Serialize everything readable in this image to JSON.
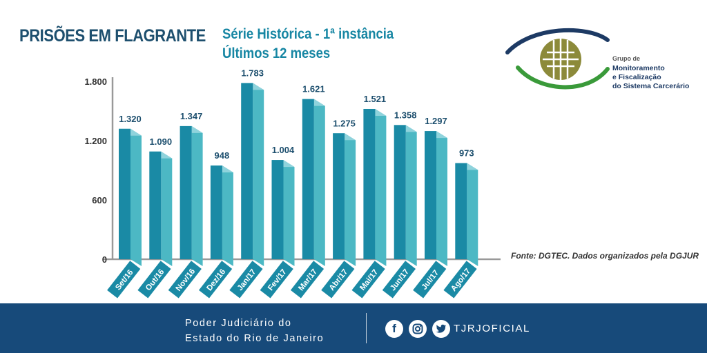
{
  "header": {
    "title": "PRISÕES EM FLAGRANTE",
    "subtitle_line1": "Série Histórica -  1ª instância",
    "subtitle_line2": "Últimos 12 meses"
  },
  "logo": {
    "line1": "Grupo de",
    "line2": "Monitoramento",
    "line3": "e Fiscalização",
    "line4": "do Sistema Carcerário"
  },
  "source": "Fonte: DGTEC. Dados organizados pela DGJUR",
  "footer": {
    "org_line1": "Poder Judiciário do",
    "org_line2": "Estado do Rio de Janeiro",
    "handle": "TJRJOFICIAL",
    "social_icons": [
      "facebook-icon",
      "instagram-icon",
      "twitter-icon"
    ]
  },
  "colors": {
    "bar_front": "#1a8aa5",
    "bar_side": "#4cb8c4",
    "bar_top": "#8fd3dc",
    "title": "#1d4f6e",
    "subtitle": "#1686a3",
    "footer_bg": "#174a7a"
  },
  "chart_data": {
    "type": "bar",
    "categories": [
      "Set/16",
      "Out/16",
      "Nov/16",
      "Dez/16",
      "Jan/17",
      "Fev/17",
      "Mar/17",
      "Abr/17",
      "Mai/17",
      "Jun/17",
      "Jul/17",
      "Ago/17"
    ],
    "values": [
      1320,
      1090,
      1347,
      948,
      1783,
      1004,
      1621,
      1275,
      1521,
      1358,
      1297,
      973
    ],
    "value_labels": [
      "1.320",
      "1.090",
      "1.347",
      "948",
      "1.783",
      "1.004",
      "1.621",
      "1.275",
      "1.521",
      "1.358",
      "1.297",
      "973"
    ],
    "ylim": [
      0,
      1800
    ],
    "yticks": [
      0,
      600,
      1200,
      1800
    ],
    "ytick_labels": [
      "0",
      "600",
      "1.200",
      "1.800"
    ],
    "grid": false
  }
}
